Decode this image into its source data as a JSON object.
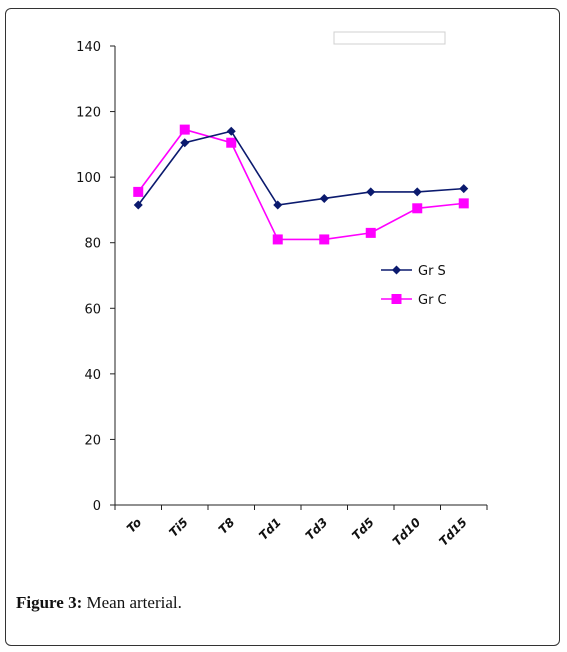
{
  "caption": {
    "label": "Figure 3:",
    "text": "Mean arterial."
  },
  "chart_data": {
    "type": "line",
    "categories": [
      "To",
      "Ti5",
      "T8",
      "Td1",
      "Td3",
      "Td5",
      "Td10",
      "Td15"
    ],
    "series": [
      {
        "name": "Gr S",
        "color": "#0b1a6e",
        "marker": "diamond",
        "values": [
          91.5,
          110.5,
          114,
          91.5,
          93.5,
          95.5,
          95.5,
          96.5
        ]
      },
      {
        "name": "Gr C",
        "color": "#ff00ff",
        "marker": "square",
        "values": [
          95.5,
          114.5,
          110.5,
          81,
          81,
          83,
          90.5,
          92
        ]
      }
    ],
    "yticks": [
      0,
      20,
      40,
      60,
      80,
      100,
      120,
      140
    ],
    "ylim": [
      0,
      140
    ],
    "grid": false,
    "legend": "right"
  }
}
